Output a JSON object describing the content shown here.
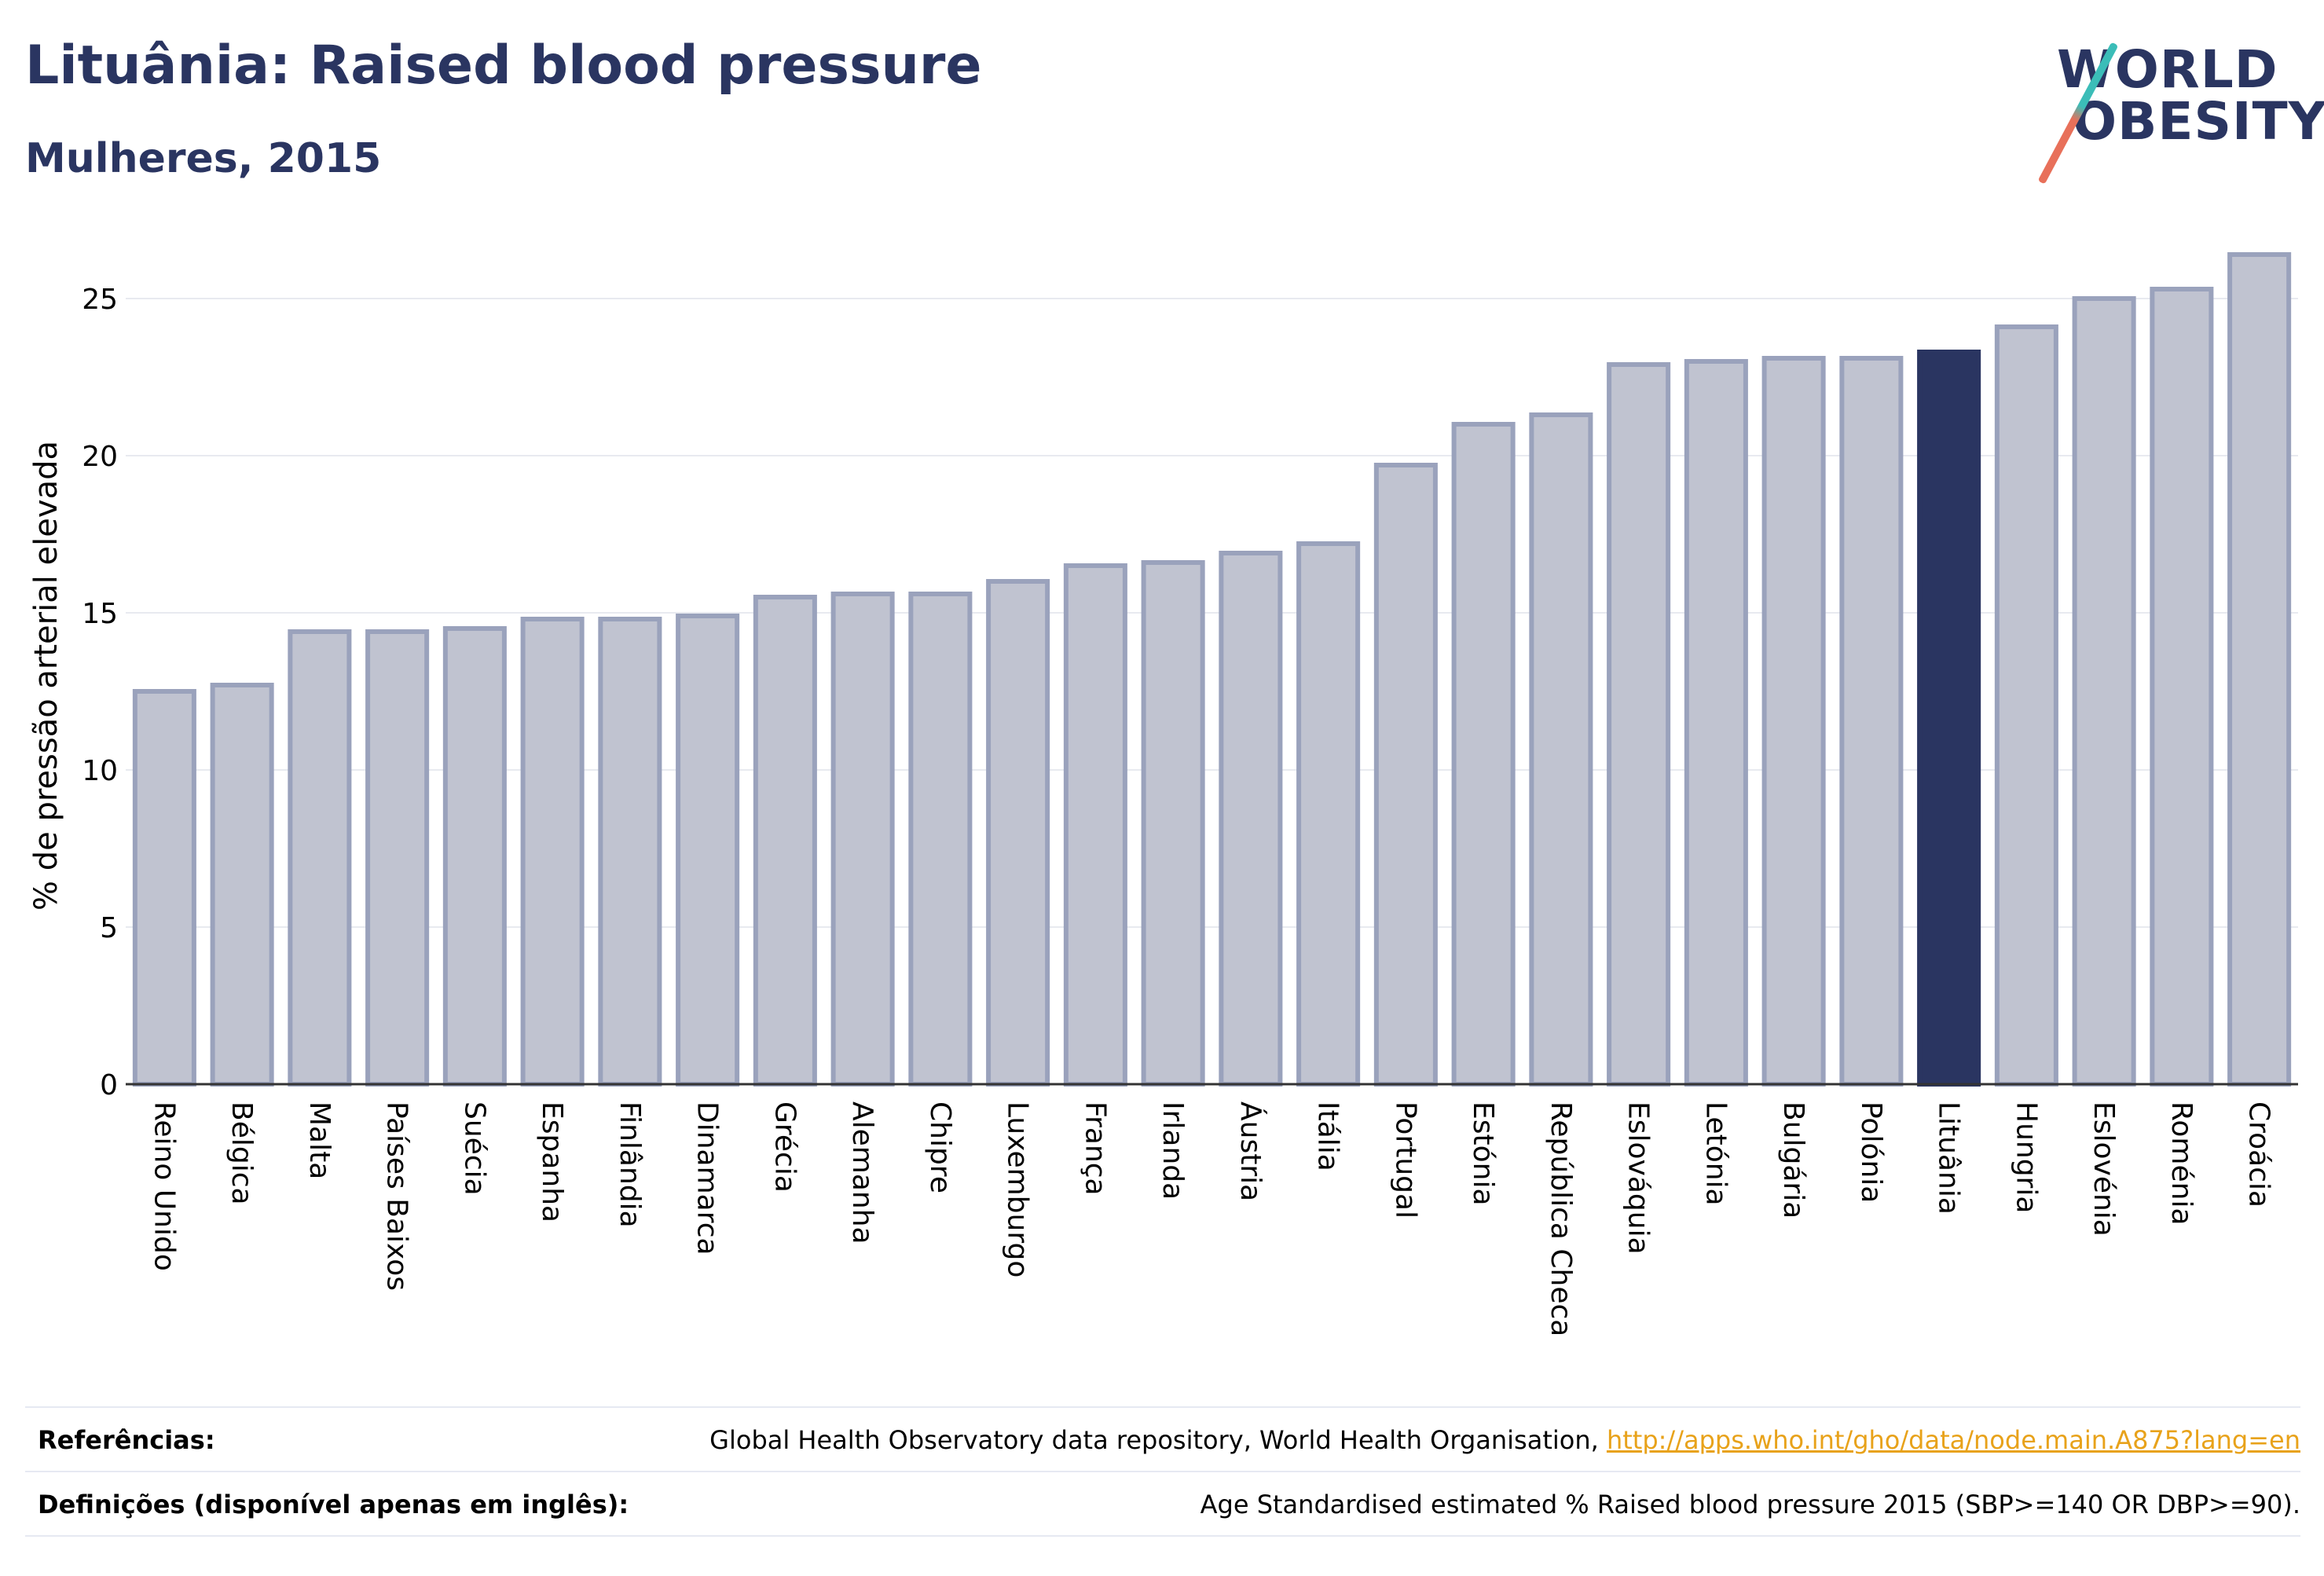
{
  "header": {
    "title": "Lituânia: Raised blood pressure",
    "subtitle": "Mulheres, 2015"
  },
  "logo": {
    "line1": "WORLD",
    "line2": "OBESITY"
  },
  "colors": {
    "highlight": "#2a3561",
    "bar_fill": "#c0c3d0",
    "bar_stroke": "#9aa2bc",
    "grid": "#e8eaf0",
    "link": "#e8a21a"
  },
  "chart_data": {
    "type": "bar",
    "ylabel": "% de pressão arterial elevada",
    "ylim": [
      0,
      27
    ],
    "yticks": [
      0,
      5,
      10,
      15,
      20,
      25
    ],
    "grid": true,
    "highlight_category": "Lituânia",
    "categories": [
      "Reino Unido",
      "Bélgica",
      "Malta",
      "Países Baixos",
      "Suécia",
      "Espanha",
      "Finlândia",
      "Dinamarca",
      "Grécia",
      "Alemanha",
      "Chipre",
      "Luxemburgo",
      "França",
      "Irlanda",
      "Áustria",
      "Itália",
      "Portugal",
      "Estónia",
      "República Checa",
      "Eslováquia",
      "Letónia",
      "Bulgária",
      "Polónia",
      "Lituânia",
      "Hungria",
      "Eslovénia",
      "Roménia",
      "Croácia"
    ],
    "values": [
      12.5,
      12.7,
      14.4,
      14.4,
      14.5,
      14.8,
      14.8,
      14.9,
      15.5,
      15.6,
      15.6,
      16.0,
      16.5,
      16.6,
      16.9,
      17.2,
      19.7,
      21.0,
      21.3,
      22.9,
      23.0,
      23.1,
      23.1,
      23.3,
      24.1,
      25.0,
      25.3,
      26.4
    ]
  },
  "footer": {
    "references_label": "Referências:",
    "references_text": "Global Health Observatory data repository, World Health Organisation, ",
    "references_link": "http://apps.who.int/gho/data/node.main.A875?lang=en",
    "definitions_label": "Definições (disponível apenas em inglês):",
    "definitions_text": "Age Standardised estimated % Raised blood pressure 2015 (SBP>=140 OR DBP>=90)."
  }
}
